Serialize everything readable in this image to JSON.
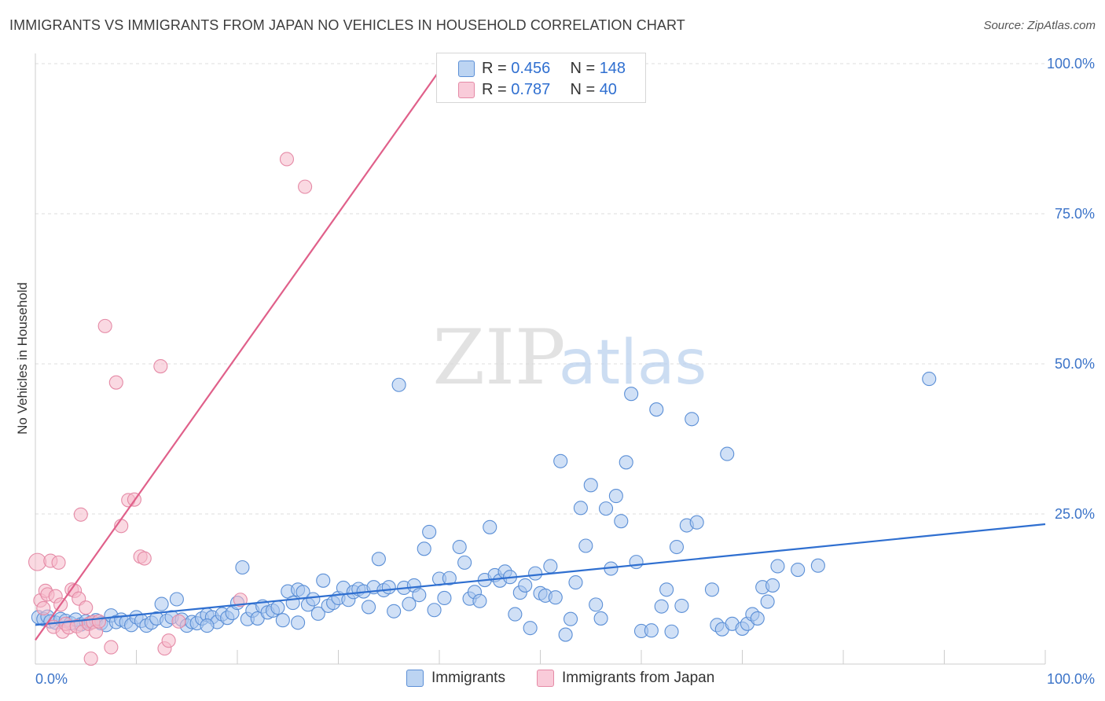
{
  "title": "IMMIGRANTS VS IMMIGRANTS FROM JAPAN NO VEHICLES IN HOUSEHOLD CORRELATION CHART",
  "source": "Source: ZipAtlas.com",
  "watermark": {
    "zip": "ZIP",
    "atlas": "atlas"
  },
  "legend_top": {
    "rows": [
      {
        "r_label": "R = ",
        "r_value": "0.456",
        "n_label": "N = ",
        "n_value": "148"
      },
      {
        "r_label": "R = ",
        "r_value": "0.787",
        "n_label": "N = ",
        "n_value": "40"
      }
    ]
  },
  "legend_bottom": {
    "items": [
      "Immigrants",
      "Immigrants from Japan"
    ]
  },
  "colors": {
    "blue_fill": "#a9c6ee",
    "blue_stroke": "#5b8fd6",
    "blue_line": "#2f6fd0",
    "pink_fill": "#f6b9cb",
    "pink_stroke": "#e58aa6",
    "pink_line": "#e0608a",
    "tick_label": "#3b73c8",
    "grid": "#dddddd"
  },
  "chart_data": {
    "type": "scatter",
    "title": "IMMIGRANTS VS IMMIGRANTS FROM JAPAN NO VEHICLES IN HOUSEHOLD CORRELATION CHART",
    "xlabel": "",
    "ylabel": "No Vehicles in Household",
    "xlim": [
      0,
      100
    ],
    "ylim": [
      0,
      100
    ],
    "x_tick_labels": [
      "0.0%",
      "100.0%"
    ],
    "y_tick_labels": [
      "25.0%",
      "50.0%",
      "75.0%",
      "100.0%"
    ],
    "y_ticks": [
      25,
      50,
      75,
      100
    ],
    "grid": true,
    "legend_position": "bottom",
    "series": [
      {
        "name": "Immigrants",
        "color": "#5b8fd6",
        "r": 0.456,
        "n": 148,
        "trend": {
          "x": [
            0,
            100
          ],
          "y": [
            6.5,
            23.3
          ]
        },
        "points": [
          [
            0.3,
            7.8
          ],
          [
            0.8,
            7.5
          ],
          [
            1.2,
            7.9
          ],
          [
            1.5,
            7.1
          ],
          [
            2,
            6.9
          ],
          [
            2.5,
            7.5
          ],
          [
            3,
            7.2
          ],
          [
            3.5,
            6.8
          ],
          [
            4,
            7.4
          ],
          [
            4.5,
            6.6
          ],
          [
            5,
            7.1
          ],
          [
            5.5,
            6.9
          ],
          [
            6,
            7.3
          ],
          [
            6.5,
            6.8
          ],
          [
            7,
            6.5
          ],
          [
            7.5,
            8.1
          ],
          [
            8,
            7.0
          ],
          [
            8.5,
            7.4
          ],
          [
            9,
            7.0
          ],
          [
            9.5,
            6.5
          ],
          [
            10,
            7.8
          ],
          [
            10.5,
            7.2
          ],
          [
            11,
            6.4
          ],
          [
            11.5,
            6.9
          ],
          [
            12,
            7.6
          ],
          [
            12.5,
            10.0
          ],
          [
            13,
            7.2
          ],
          [
            13.5,
            7.8
          ],
          [
            14,
            10.8
          ],
          [
            14.5,
            7.4
          ],
          [
            15,
            6.4
          ],
          [
            15.5,
            7.0
          ],
          [
            16,
            6.8
          ],
          [
            16.5,
            7.6
          ],
          [
            17,
            8.2
          ],
          [
            17.5,
            7.8
          ],
          [
            18,
            7.0
          ],
          [
            18.5,
            8.3
          ],
          [
            19,
            7.7
          ],
          [
            19.5,
            8.5
          ],
          [
            20,
            10.2
          ],
          [
            20.5,
            16.1
          ],
          [
            21,
            7.5
          ],
          [
            21.5,
            8.9
          ],
          [
            22,
            7.6
          ],
          [
            22.5,
            9.6
          ],
          [
            23,
            8.6
          ],
          [
            23.5,
            8.9
          ],
          [
            24,
            9.4
          ],
          [
            24.5,
            7.3
          ],
          [
            25,
            12.1
          ],
          [
            25.5,
            10.2
          ],
          [
            26,
            12.4
          ],
          [
            26.5,
            12.0
          ],
          [
            27,
            9.9
          ],
          [
            27.5,
            10.8
          ],
          [
            28,
            8.4
          ],
          [
            28.5,
            13.9
          ],
          [
            29,
            9.7
          ],
          [
            29.5,
            10.2
          ],
          [
            30,
            11.0
          ],
          [
            30.5,
            12.7
          ],
          [
            31,
            10.7
          ],
          [
            31.5,
            12.0
          ],
          [
            32,
            12.5
          ],
          [
            32.5,
            12.1
          ],
          [
            33,
            9.5
          ],
          [
            33.5,
            12.8
          ],
          [
            34,
            17.5
          ],
          [
            34.5,
            12.3
          ],
          [
            35,
            12.8
          ],
          [
            35.5,
            8.8
          ],
          [
            36,
            46.5
          ],
          [
            36.5,
            12.7
          ],
          [
            37,
            10.0
          ],
          [
            37.5,
            13.1
          ],
          [
            38,
            11.5
          ],
          [
            38.5,
            19.2
          ],
          [
            39,
            22.0
          ],
          [
            39.5,
            9.0
          ],
          [
            40,
            14.2
          ],
          [
            40.5,
            11.0
          ],
          [
            41,
            14.3
          ],
          [
            42,
            19.5
          ],
          [
            42.5,
            16.9
          ],
          [
            43,
            10.9
          ],
          [
            43.5,
            12.0
          ],
          [
            44,
            10.5
          ],
          [
            44.5,
            14.0
          ],
          [
            45,
            22.8
          ],
          [
            45.5,
            14.8
          ],
          [
            46,
            13.9
          ],
          [
            46.5,
            15.4
          ],
          [
            47,
            14.5
          ],
          [
            47.5,
            8.3
          ],
          [
            48,
            11.9
          ],
          [
            48.5,
            13.1
          ],
          [
            49,
            6.0
          ],
          [
            49.5,
            15.1
          ],
          [
            50,
            11.8
          ],
          [
            50.5,
            11.4
          ],
          [
            51,
            16.3
          ],
          [
            51.5,
            11.1
          ],
          [
            52,
            33.8
          ],
          [
            52.5,
            4.9
          ],
          [
            53,
            7.5
          ],
          [
            53.5,
            13.6
          ],
          [
            54,
            26.0
          ],
          [
            54.5,
            19.7
          ],
          [
            55,
            29.8
          ],
          [
            55.5,
            9.9
          ],
          [
            56,
            7.6
          ],
          [
            56.5,
            25.9
          ],
          [
            57,
            15.9
          ],
          [
            57.5,
            28.0
          ],
          [
            58,
            23.8
          ],
          [
            58.5,
            33.6
          ],
          [
            59,
            45.0
          ],
          [
            59.5,
            17.0
          ],
          [
            60,
            5.5
          ],
          [
            61,
            5.6
          ],
          [
            61.5,
            42.4
          ],
          [
            62,
            9.6
          ],
          [
            62.5,
            12.4
          ],
          [
            63,
            5.4
          ],
          [
            63.5,
            19.5
          ],
          [
            64,
            9.7
          ],
          [
            64.5,
            23.1
          ],
          [
            65,
            40.8
          ],
          [
            65.5,
            23.6
          ],
          [
            67,
            12.4
          ],
          [
            67.5,
            6.5
          ],
          [
            68,
            5.8
          ],
          [
            68.5,
            35.0
          ],
          [
            69,
            6.7
          ],
          [
            70,
            5.9
          ],
          [
            70.5,
            6.7
          ],
          [
            71,
            8.3
          ],
          [
            71.5,
            7.6
          ],
          [
            72,
            12.8
          ],
          [
            72.5,
            10.4
          ],
          [
            73,
            13.1
          ],
          [
            73.5,
            16.3
          ],
          [
            75.5,
            15.7
          ],
          [
            77.5,
            16.4
          ],
          [
            88.5,
            47.5
          ],
          [
            17,
            6.4
          ],
          [
            26,
            6.9
          ]
        ]
      },
      {
        "name": "Immigrants from Japan",
        "color": "#e58aa6",
        "r": 0.787,
        "n": 40,
        "trend": {
          "x": [
            0,
            40.5
          ],
          "y": [
            4.0,
            100
          ]
        },
        "points": [
          [
            0.2,
            17.0
          ],
          [
            0.5,
            10.6
          ],
          [
            0.8,
            9.3
          ],
          [
            1.0,
            12.2
          ],
          [
            1.2,
            11.6
          ],
          [
            1.5,
            17.2
          ],
          [
            1.8,
            6.2
          ],
          [
            2.0,
            11.3
          ],
          [
            2.3,
            16.9
          ],
          [
            2.5,
            9.9
          ],
          [
            2.7,
            5.4
          ],
          [
            3.0,
            6.7
          ],
          [
            3.3,
            6.1
          ],
          [
            3.6,
            12.4
          ],
          [
            3.9,
            12.2
          ],
          [
            4.1,
            6.3
          ],
          [
            4.3,
            10.9
          ],
          [
            4.5,
            24.9
          ],
          [
            4.7,
            5.4
          ],
          [
            5.0,
            9.4
          ],
          [
            5.3,
            6.7
          ],
          [
            5.5,
            0.9
          ],
          [
            5.7,
            7.0
          ],
          [
            6.0,
            5.4
          ],
          [
            6.3,
            7.1
          ],
          [
            6.9,
            56.3
          ],
          [
            7.5,
            2.8
          ],
          [
            8.0,
            46.9
          ],
          [
            8.5,
            23.0
          ],
          [
            9.2,
            27.3
          ],
          [
            9.8,
            27.4
          ],
          [
            10.4,
            17.9
          ],
          [
            10.8,
            17.6
          ],
          [
            12.4,
            49.6
          ],
          [
            12.8,
            2.6
          ],
          [
            13.2,
            3.9
          ],
          [
            14.2,
            7.1
          ],
          [
            20.3,
            10.7
          ],
          [
            24.9,
            84.1
          ],
          [
            26.7,
            79.5
          ]
        ]
      }
    ]
  }
}
